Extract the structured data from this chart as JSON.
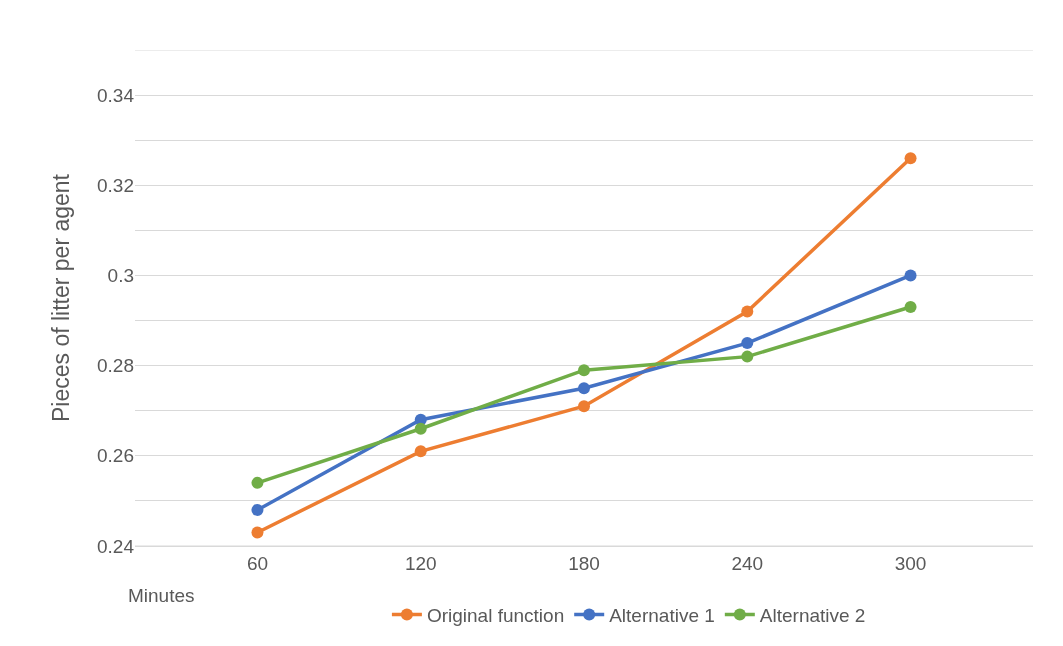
{
  "chart_data": {
    "type": "line",
    "xlabel": "Minutes",
    "ylabel": "Pieces of litter per agent",
    "categories": [
      "60",
      "120",
      "180",
      "240",
      "300"
    ],
    "series": [
      {
        "name": "Original function",
        "color": "#ed7d31",
        "values": [
          0.243,
          0.261,
          0.271,
          0.292,
          0.326
        ]
      },
      {
        "name": "Alternative 1",
        "color": "#4472c4",
        "values": [
          0.248,
          0.268,
          0.275,
          0.285,
          0.3
        ]
      },
      {
        "name": "Alternative 2",
        "color": "#70ad47",
        "values": [
          0.254,
          0.266,
          0.279,
          0.282,
          0.293
        ]
      }
    ],
    "ylim": [
      0.24,
      0.35
    ],
    "yticks": [
      0.24,
      {
        "value": 0.25,
        "label": null
      },
      0.26,
      {
        "value": 0.27,
        "label": null
      },
      0.28,
      {
        "value": 0.29,
        "label": null
      },
      {
        "value": 0.3,
        "label": "0.3"
      },
      {
        "value": 0.31,
        "label": null
      },
      0.32,
      {
        "value": 0.33,
        "label": null
      },
      0.34,
      {
        "value": 0.35,
        "label": null
      }
    ],
    "grid": "y",
    "marker": "circle",
    "line_style": "solid",
    "legend": "bottom"
  }
}
